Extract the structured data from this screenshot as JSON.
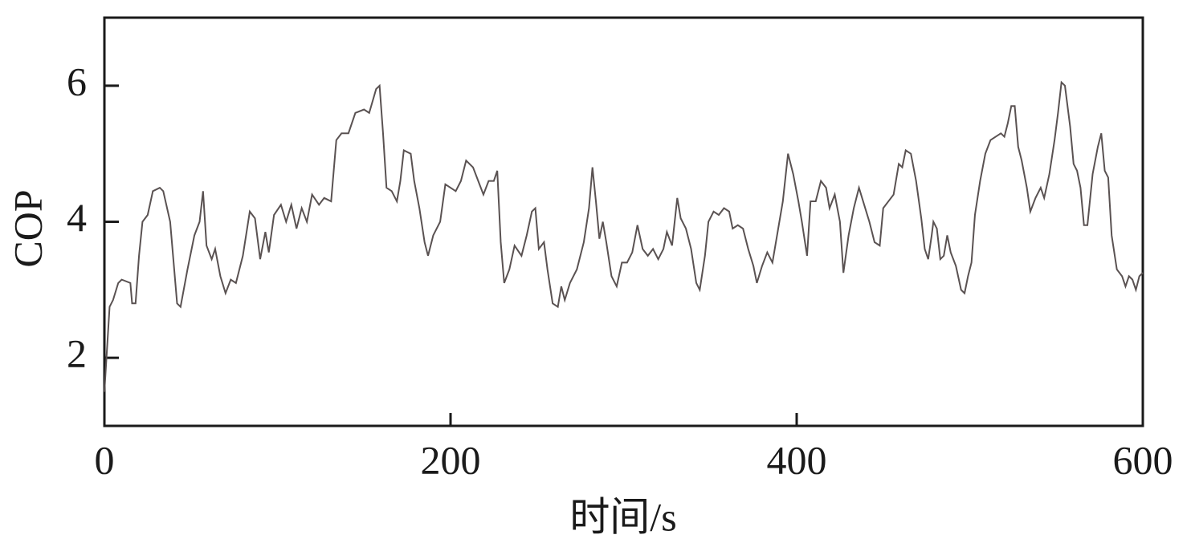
{
  "chart_data": {
    "type": "line",
    "x_label": "时间/s",
    "y_label": "COP",
    "xlim": [
      0,
      600
    ],
    "ylim": [
      1,
      7
    ],
    "xticks": [
      0,
      200,
      400,
      600
    ],
    "yticks": [
      2,
      4,
      6
    ],
    "grid": false,
    "x": [
      0,
      3,
      5,
      8,
      10,
      15,
      16,
      18,
      20,
      22,
      25,
      28,
      32,
      34,
      38,
      42,
      44,
      48,
      52,
      55,
      57,
      59,
      62,
      64,
      67,
      70,
      73,
      76,
      80,
      84,
      87,
      90,
      93,
      95,
      98,
      102,
      105,
      108,
      111,
      114,
      117,
      120,
      124,
      127,
      131,
      134,
      137,
      141,
      145,
      150,
      153,
      157,
      159,
      161,
      163,
      166,
      169,
      171,
      173,
      177,
      179,
      182,
      185,
      187,
      190,
      194,
      197,
      200,
      203,
      206,
      209,
      213,
      216,
      219,
      222,
      225,
      227,
      229,
      231,
      234,
      237,
      241,
      244,
      247,
      249,
      251,
      254,
      256,
      259,
      262,
      264,
      266,
      269,
      273,
      277,
      280,
      282,
      284,
      286,
      288,
      290,
      293,
      296,
      299,
      302,
      305,
      308,
      311,
      314,
      317,
      320,
      323,
      325,
      328,
      331,
      333,
      336,
      339,
      342,
      344,
      347,
      349,
      352,
      355,
      358,
      361,
      363,
      366,
      369,
      372,
      375,
      377,
      380,
      383,
      386,
      389,
      392,
      395,
      398,
      401,
      403,
      406,
      408,
      411,
      414,
      417,
      419,
      422,
      425,
      427,
      430,
      433,
      436,
      439,
      442,
      445,
      448,
      450,
      453,
      456,
      459,
      461,
      463,
      466,
      469,
      472,
      474,
      476,
      478,
      479,
      481,
      483,
      485,
      487,
      489,
      492,
      495,
      497,
      499,
      501,
      503,
      506,
      509,
      512,
      515,
      518,
      520,
      522,
      524,
      526,
      528,
      530,
      533,
      535,
      538,
      541,
      543,
      546,
      549,
      551,
      553,
      555,
      558,
      560,
      562,
      564,
      566,
      568,
      571,
      574,
      576,
      578,
      580,
      582,
      585,
      588,
      590,
      592,
      594,
      596,
      598,
      600
    ],
    "series": [
      {
        "name": "COP",
        "color": "#5a5252",
        "values": [
          1.5,
          2.75,
          2.85,
          3.1,
          3.15,
          3.1,
          2.8,
          2.8,
          3.5,
          4.0,
          4.1,
          4.45,
          4.5,
          4.45,
          4.0,
          2.8,
          2.75,
          3.3,
          3.8,
          4.0,
          4.45,
          3.65,
          3.45,
          3.6,
          3.2,
          2.95,
          3.15,
          3.1,
          3.5,
          4.15,
          4.05,
          3.45,
          3.85,
          3.55,
          4.1,
          4.25,
          4.0,
          4.25,
          3.9,
          4.2,
          4.0,
          4.4,
          4.25,
          4.35,
          4.3,
          5.2,
          5.3,
          5.3,
          5.6,
          5.65,
          5.6,
          5.95,
          6.0,
          5.3,
          4.5,
          4.45,
          4.3,
          4.6,
          5.05,
          5.0,
          4.6,
          4.2,
          3.7,
          3.5,
          3.8,
          4.0,
          4.55,
          4.5,
          4.45,
          4.6,
          4.9,
          4.8,
          4.6,
          4.4,
          4.6,
          4.6,
          4.75,
          3.7,
          3.1,
          3.3,
          3.65,
          3.5,
          3.8,
          4.15,
          4.2,
          3.6,
          3.7,
          3.3,
          2.8,
          2.75,
          3.05,
          2.85,
          3.1,
          3.3,
          3.7,
          4.2,
          4.8,
          4.3,
          3.75,
          4.0,
          3.7,
          3.2,
          3.05,
          3.4,
          3.4,
          3.55,
          3.95,
          3.6,
          3.5,
          3.6,
          3.45,
          3.6,
          3.85,
          3.65,
          4.35,
          4.05,
          3.9,
          3.6,
          3.1,
          3.0,
          3.5,
          4.0,
          4.15,
          4.1,
          4.2,
          4.15,
          3.9,
          3.95,
          3.9,
          3.6,
          3.35,
          3.1,
          3.35,
          3.55,
          3.4,
          3.85,
          4.3,
          5.0,
          4.7,
          4.3,
          4.0,
          3.5,
          4.3,
          4.3,
          4.6,
          4.5,
          4.2,
          4.4,
          4.0,
          3.25,
          3.8,
          4.2,
          4.5,
          4.25,
          4.0,
          3.7,
          3.65,
          4.2,
          4.3,
          4.4,
          4.85,
          4.8,
          5.05,
          5.0,
          4.6,
          4.05,
          3.6,
          3.45,
          3.8,
          4.0,
          3.9,
          3.45,
          3.5,
          3.8,
          3.55,
          3.35,
          3.0,
          2.95,
          3.2,
          3.4,
          4.1,
          4.6,
          5.0,
          5.2,
          5.25,
          5.3,
          5.25,
          5.45,
          5.7,
          5.7,
          5.1,
          4.9,
          4.5,
          4.15,
          4.35,
          4.5,
          4.35,
          4.7,
          5.2,
          5.6,
          6.05,
          6.0,
          5.4,
          4.85,
          4.75,
          4.5,
          3.95,
          3.95,
          4.7,
          5.1,
          5.3,
          4.75,
          4.65,
          3.8,
          3.3,
          3.2,
          3.05,
          3.2,
          3.15,
          3.0,
          3.2,
          3.25
        ]
      }
    ]
  }
}
